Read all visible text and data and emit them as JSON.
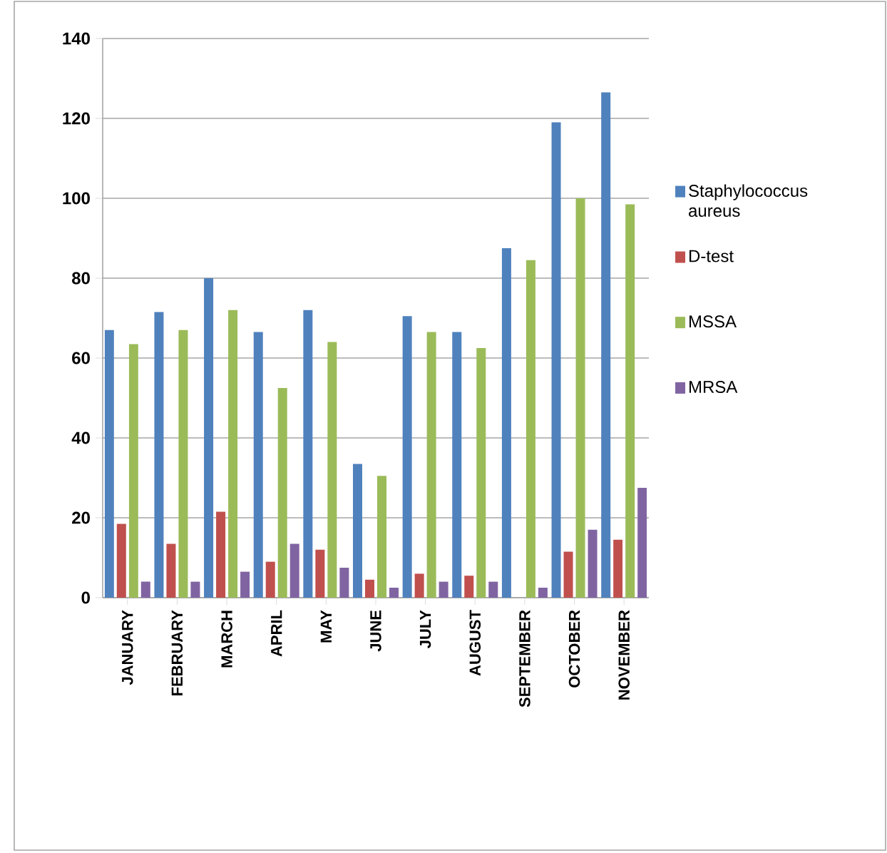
{
  "chart_data": {
    "type": "bar",
    "categories": [
      "JANUARY",
      "FEBRUARY",
      "MARCH",
      "APRIL",
      "MAY",
      "JUNE",
      "JULY",
      "AUGUST",
      "SEPTEMBER",
      "OCTOBER",
      "NOVEMBER"
    ],
    "series": [
      {
        "name": "Staphylococcus aureus",
        "color": "#4f81bd",
        "values": [
          67,
          71.5,
          80,
          66.5,
          72,
          33.5,
          70.5,
          66.5,
          87.5,
          119,
          126.5
        ]
      },
      {
        "name": "D-test",
        "color": "#c0504d",
        "values": [
          18.5,
          13.5,
          21.5,
          9,
          12,
          4.5,
          6,
          5.5,
          null,
          11.5,
          14.5
        ]
      },
      {
        "name": "MSSA",
        "color": "#9bbb59",
        "values": [
          63.5,
          67,
          72,
          52.5,
          64,
          30.5,
          66.5,
          62.5,
          84.5,
          100,
          98.5
        ]
      },
      {
        "name": "MRSA",
        "color": "#8064a2",
        "values": [
          4,
          4,
          6.5,
          13.5,
          7.5,
          2.5,
          4,
          4,
          2.5,
          17,
          27.5
        ]
      }
    ],
    "ylim": [
      0,
      140
    ],
    "yticks": [
      0,
      20,
      40,
      60,
      80,
      100,
      120,
      140
    ],
    "grid": "y",
    "legend": "right"
  }
}
